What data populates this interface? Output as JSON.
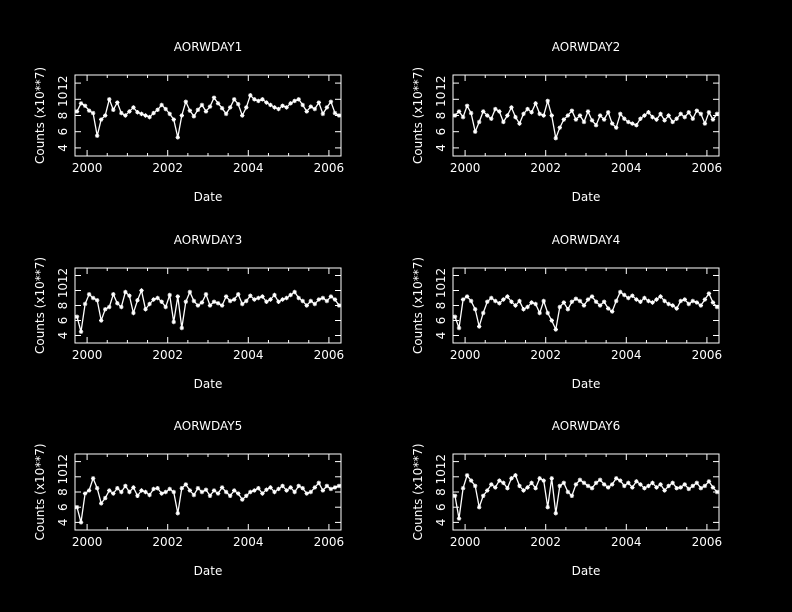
{
  "figure": {
    "background": "#000000",
    "foreground": "#ffffff"
  },
  "chart_data": [
    {
      "type": "line",
      "title": "AORWDAY1",
      "xlabel": "Date",
      "ylabel": "Counts (x10**7)",
      "xlim": [
        1999.7,
        2006.3
      ],
      "ylim": [
        3,
        13
      ],
      "xticks": [
        2000,
        2002,
        2004,
        2006
      ],
      "xtick_labels": [
        "2000",
        "2002",
        "2004",
        "2006"
      ],
      "yticks": [
        4,
        6,
        8,
        10,
        12
      ],
      "ytick_labels": [
        "4",
        "6",
        "8",
        "10",
        "12"
      ],
      "markers": "asterisk",
      "grid": false,
      "series": [
        {
          "x": [
            1999.75,
            1999.85,
            1999.95,
            2000.05,
            2000.15,
            2000.25,
            2000.35,
            2000.45,
            2000.55,
            2000.65,
            2000.75,
            2000.85,
            2000.95,
            2001.05,
            2001.15,
            2001.25,
            2001.35,
            2001.45,
            2001.55,
            2001.65,
            2001.75,
            2001.85,
            2001.95,
            2002.05,
            2002.15,
            2002.25,
            2002.35,
            2002.45,
            2002.55,
            2002.65,
            2002.75,
            2002.85,
            2002.95,
            2003.05,
            2003.15,
            2003.25,
            2003.35,
            2003.45,
            2003.55,
            2003.65,
            2003.75,
            2003.85,
            2003.95,
            2004.05,
            2004.15,
            2004.25,
            2004.35,
            2004.45,
            2004.55,
            2004.65,
            2004.75,
            2004.85,
            2004.95,
            2005.05,
            2005.15,
            2005.25,
            2005.35,
            2005.45,
            2005.55,
            2005.65,
            2005.75,
            2005.85,
            2005.95,
            2006.05,
            2006.15,
            2006.25
          ],
          "values": [
            8.5,
            9.5,
            9.2,
            8.6,
            8.3,
            5.5,
            7.5,
            8.0,
            10.0,
            8.7,
            9.6,
            8.3,
            8.0,
            8.5,
            9.0,
            8.4,
            8.2,
            8.0,
            7.8,
            8.3,
            8.7,
            9.3,
            8.8,
            8.2,
            7.5,
            5.3,
            8.0,
            9.7,
            8.6,
            7.9,
            8.7,
            9.3,
            8.5,
            9.1,
            10.2,
            9.5,
            8.9,
            8.2,
            9.0,
            10.0,
            9.4,
            8.0,
            9.0,
            10.5,
            10.0,
            9.8,
            10.0,
            9.6,
            9.3,
            9.0,
            8.8,
            9.2,
            9.0,
            9.5,
            9.8,
            10.0,
            9.3,
            8.5,
            9.1,
            8.8,
            9.6,
            8.2,
            9.0,
            9.7,
            8.3,
            8.0
          ]
        }
      ]
    },
    {
      "type": "line",
      "title": "AORWDAY2",
      "xlabel": "Date",
      "ylabel": "Counts (x10**7)",
      "xlim": [
        1999.7,
        2006.3
      ],
      "ylim": [
        3,
        13
      ],
      "xticks": [
        2000,
        2002,
        2004,
        2006
      ],
      "xtick_labels": [
        "2000",
        "2002",
        "2004",
        "2006"
      ],
      "yticks": [
        4,
        6,
        8,
        10,
        12
      ],
      "ytick_labels": [
        "4",
        "6",
        "8",
        "10",
        "12"
      ],
      "markers": "asterisk",
      "grid": false,
      "series": [
        {
          "x": [
            1999.75,
            1999.85,
            1999.95,
            2000.05,
            2000.15,
            2000.25,
            2000.35,
            2000.45,
            2000.55,
            2000.65,
            2000.75,
            2000.85,
            2000.95,
            2001.05,
            2001.15,
            2001.25,
            2001.35,
            2001.45,
            2001.55,
            2001.65,
            2001.75,
            2001.85,
            2001.95,
            2002.05,
            2002.15,
            2002.25,
            2002.35,
            2002.45,
            2002.55,
            2002.65,
            2002.75,
            2002.85,
            2002.95,
            2003.05,
            2003.15,
            2003.25,
            2003.35,
            2003.45,
            2003.55,
            2003.65,
            2003.75,
            2003.85,
            2003.95,
            2004.05,
            2004.15,
            2004.25,
            2004.35,
            2004.45,
            2004.55,
            2004.65,
            2004.75,
            2004.85,
            2004.95,
            2005.05,
            2005.15,
            2005.25,
            2005.35,
            2005.45,
            2005.55,
            2005.65,
            2005.75,
            2005.85,
            2005.95,
            2006.05,
            2006.15,
            2006.25
          ],
          "values": [
            8.0,
            8.5,
            7.8,
            9.2,
            8.3,
            6.0,
            7.2,
            8.5,
            8.0,
            7.6,
            8.8,
            8.5,
            7.2,
            8.0,
            9.0,
            7.8,
            7.0,
            8.2,
            8.8,
            8.4,
            9.5,
            8.2,
            8.0,
            9.8,
            8.0,
            5.2,
            6.5,
            7.5,
            8.0,
            8.6,
            7.5,
            8.0,
            7.2,
            8.5,
            7.4,
            6.8,
            8.0,
            7.5,
            8.4,
            7.0,
            6.5,
            8.2,
            7.6,
            7.2,
            7.0,
            6.8,
            7.6,
            8.0,
            8.4,
            7.8,
            7.5,
            8.2,
            7.4,
            8.0,
            7.2,
            7.6,
            8.2,
            7.8,
            8.4,
            7.6,
            8.6,
            8.2,
            7.0,
            8.4,
            7.5,
            8.2
          ]
        }
      ]
    },
    {
      "type": "line",
      "title": "AORWDAY3",
      "xlabel": "Date",
      "ylabel": "Counts (x10**7)",
      "xlim": [
        1999.7,
        2006.3
      ],
      "ylim": [
        3,
        13
      ],
      "xticks": [
        2000,
        2002,
        2004,
        2006
      ],
      "xtick_labels": [
        "2000",
        "2002",
        "2004",
        "2006"
      ],
      "yticks": [
        4,
        6,
        8,
        10,
        12
      ],
      "ytick_labels": [
        "4",
        "6",
        "8",
        "10",
        "12"
      ],
      "markers": "asterisk",
      "grid": false,
      "series": [
        {
          "x": [
            1999.75,
            1999.85,
            1999.95,
            2000.05,
            2000.15,
            2000.25,
            2000.35,
            2000.45,
            2000.55,
            2000.65,
            2000.75,
            2000.85,
            2000.95,
            2001.05,
            2001.15,
            2001.25,
            2001.35,
            2001.45,
            2001.55,
            2001.65,
            2001.75,
            2001.85,
            2001.95,
            2002.05,
            2002.15,
            2002.25,
            2002.35,
            2002.45,
            2002.55,
            2002.65,
            2002.75,
            2002.85,
            2002.95,
            2003.05,
            2003.15,
            2003.25,
            2003.35,
            2003.45,
            2003.55,
            2003.65,
            2003.75,
            2003.85,
            2003.95,
            2004.05,
            2004.15,
            2004.25,
            2004.35,
            2004.45,
            2004.55,
            2004.65,
            2004.75,
            2004.85,
            2004.95,
            2005.05,
            2005.15,
            2005.25,
            2005.35,
            2005.45,
            2005.55,
            2005.65,
            2005.75,
            2005.85,
            2005.95,
            2006.05,
            2006.15,
            2006.25
          ],
          "values": [
            6.5,
            4.5,
            8.2,
            9.5,
            9.0,
            8.7,
            6.0,
            7.5,
            7.8,
            9.5,
            8.3,
            7.8,
            9.8,
            9.3,
            7.0,
            8.7,
            10.0,
            7.5,
            8.2,
            8.8,
            9.0,
            8.5,
            7.8,
            9.4,
            5.8,
            9.2,
            5.0,
            8.5,
            9.8,
            8.6,
            8.0,
            8.4,
            9.5,
            8.0,
            8.5,
            8.3,
            8.0,
            9.2,
            8.6,
            8.8,
            9.5,
            8.2,
            8.6,
            9.3,
            8.8,
            9.0,
            9.2,
            8.5,
            8.8,
            9.4,
            8.5,
            8.8,
            9.0,
            9.4,
            9.8,
            9.0,
            8.6,
            8.0,
            8.6,
            8.2,
            8.8,
            9.0,
            8.6,
            9.2,
            8.8,
            8.0
          ]
        }
      ]
    },
    {
      "type": "line",
      "title": "AORWDAY4",
      "xlabel": "Date",
      "ylabel": "Counts (x10**7)",
      "xlim": [
        1999.7,
        2006.3
      ],
      "ylim": [
        3,
        13
      ],
      "xticks": [
        2000,
        2002,
        2004,
        2006
      ],
      "xtick_labels": [
        "2000",
        "2002",
        "2004",
        "2006"
      ],
      "yticks": [
        4,
        6,
        8,
        10,
        12
      ],
      "ytick_labels": [
        "4",
        "6",
        "8",
        "10",
        "12"
      ],
      "markers": "asterisk",
      "grid": false,
      "series": [
        {
          "x": [
            1999.75,
            1999.85,
            1999.95,
            2000.05,
            2000.15,
            2000.25,
            2000.35,
            2000.45,
            2000.55,
            2000.65,
            2000.75,
            2000.85,
            2000.95,
            2001.05,
            2001.15,
            2001.25,
            2001.35,
            2001.45,
            2001.55,
            2001.65,
            2001.75,
            2001.85,
            2001.95,
            2002.05,
            2002.15,
            2002.25,
            2002.35,
            2002.45,
            2002.55,
            2002.65,
            2002.75,
            2002.85,
            2002.95,
            2003.05,
            2003.15,
            2003.25,
            2003.35,
            2003.45,
            2003.55,
            2003.65,
            2003.75,
            2003.85,
            2003.95,
            2004.05,
            2004.15,
            2004.25,
            2004.35,
            2004.45,
            2004.55,
            2004.65,
            2004.75,
            2004.85,
            2004.95,
            2005.05,
            2005.15,
            2005.25,
            2005.35,
            2005.45,
            2005.55,
            2005.65,
            2005.75,
            2005.85,
            2005.95,
            2006.05,
            2006.15,
            2006.25
          ],
          "values": [
            6.5,
            5.0,
            8.8,
            9.2,
            8.6,
            7.5,
            5.2,
            7.0,
            8.5,
            9.0,
            8.6,
            8.3,
            8.8,
            9.2,
            8.5,
            8.0,
            8.6,
            7.5,
            7.8,
            8.4,
            8.2,
            7.0,
            8.6,
            7.0,
            6.0,
            4.8,
            7.8,
            8.4,
            7.5,
            8.5,
            8.9,
            8.6,
            8.0,
            8.8,
            9.2,
            8.5,
            8.0,
            8.5,
            7.6,
            7.2,
            8.6,
            9.8,
            9.4,
            9.0,
            9.3,
            8.8,
            8.5,
            9.0,
            8.6,
            8.4,
            8.8,
            9.2,
            8.6,
            8.2,
            8.0,
            7.6,
            8.6,
            8.8,
            8.2,
            8.6,
            8.4,
            8.0,
            8.8,
            9.6,
            8.4,
            7.8
          ]
        }
      ]
    },
    {
      "type": "line",
      "title": "AORWDAY5",
      "xlabel": "Date",
      "ylabel": "Counts (x10**7)",
      "xlim": [
        1999.7,
        2006.3
      ],
      "ylim": [
        3,
        13
      ],
      "xticks": [
        2000,
        2002,
        2004,
        2006
      ],
      "xtick_labels": [
        "2000",
        "2002",
        "2004",
        "2006"
      ],
      "yticks": [
        4,
        6,
        8,
        10,
        12
      ],
      "ytick_labels": [
        "4",
        "6",
        "8",
        "10",
        "12"
      ],
      "markers": "asterisk",
      "grid": false,
      "series": [
        {
          "x": [
            1999.75,
            1999.85,
            1999.95,
            2000.05,
            2000.15,
            2000.25,
            2000.35,
            2000.45,
            2000.55,
            2000.65,
            2000.75,
            2000.85,
            2000.95,
            2001.05,
            2001.15,
            2001.25,
            2001.35,
            2001.45,
            2001.55,
            2001.65,
            2001.75,
            2001.85,
            2001.95,
            2002.05,
            2002.15,
            2002.25,
            2002.35,
            2002.45,
            2002.55,
            2002.65,
            2002.75,
            2002.85,
            2002.95,
            2003.05,
            2003.15,
            2003.25,
            2003.35,
            2003.45,
            2003.55,
            2003.65,
            2003.75,
            2003.85,
            2003.95,
            2004.05,
            2004.15,
            2004.25,
            2004.35,
            2004.45,
            2004.55,
            2004.65,
            2004.75,
            2004.85,
            2004.95,
            2005.05,
            2005.15,
            2005.25,
            2005.35,
            2005.45,
            2005.55,
            2005.65,
            2005.75,
            2005.85,
            2005.95,
            2006.05,
            2006.15,
            2006.25
          ],
          "values": [
            6.0,
            4.0,
            7.8,
            8.2,
            9.8,
            8.5,
            6.5,
            7.2,
            8.2,
            7.8,
            8.5,
            8.0,
            8.8,
            8.0,
            8.6,
            7.5,
            8.2,
            8.0,
            7.6,
            8.4,
            8.5,
            7.8,
            8.0,
            8.4,
            8.0,
            5.2,
            8.5,
            9.0,
            8.2,
            7.6,
            8.5,
            8.0,
            8.3,
            7.5,
            8.2,
            7.8,
            8.6,
            8.0,
            7.5,
            8.2,
            7.8,
            7.0,
            7.5,
            8.0,
            8.2,
            8.5,
            7.8,
            8.3,
            8.6,
            8.0,
            8.4,
            8.8,
            8.2,
            8.6,
            8.0,
            8.8,
            8.5,
            7.8,
            8.0,
            8.6,
            9.2,
            8.2,
            8.8,
            8.4,
            8.6,
            8.8
          ]
        }
      ]
    },
    {
      "type": "line",
      "title": "AORWDAY6",
      "xlabel": "Date",
      "ylabel": "Counts (x10**7)",
      "xlim": [
        1999.7,
        2006.3
      ],
      "ylim": [
        3,
        13
      ],
      "xticks": [
        2000,
        2002,
        2004,
        2006
      ],
      "xtick_labels": [
        "2000",
        "2002",
        "2004",
        "2006"
      ],
      "yticks": [
        4,
        6,
        8,
        10,
        12
      ],
      "ytick_labels": [
        "4",
        "6",
        "8",
        "10",
        "12"
      ],
      "markers": "asterisk",
      "grid": false,
      "series": [
        {
          "x": [
            1999.75,
            1999.85,
            1999.95,
            2000.05,
            2000.15,
            2000.25,
            2000.35,
            2000.45,
            2000.55,
            2000.65,
            2000.75,
            2000.85,
            2000.95,
            2001.05,
            2001.15,
            2001.25,
            2001.35,
            2001.45,
            2001.55,
            2001.65,
            2001.75,
            2001.85,
            2001.95,
            2002.05,
            2002.15,
            2002.25,
            2002.35,
            2002.45,
            2002.55,
            2002.65,
            2002.75,
            2002.85,
            2002.95,
            2003.05,
            2003.15,
            2003.25,
            2003.35,
            2003.45,
            2003.55,
            2003.65,
            2003.75,
            2003.85,
            2003.95,
            2004.05,
            2004.15,
            2004.25,
            2004.35,
            2004.45,
            2004.55,
            2004.65,
            2004.75,
            2004.85,
            2004.95,
            2005.05,
            2005.15,
            2005.25,
            2005.35,
            2005.45,
            2005.55,
            2005.65,
            2005.75,
            2005.85,
            2005.95,
            2006.05,
            2006.15,
            2006.25
          ],
          "values": [
            7.5,
            4.5,
            8.5,
            10.2,
            9.5,
            8.8,
            6.0,
            7.5,
            8.2,
            9.0,
            8.6,
            9.5,
            9.2,
            8.5,
            9.8,
            10.2,
            8.8,
            8.2,
            8.6,
            9.2,
            8.5,
            9.8,
            9.5,
            6.0,
            9.8,
            5.2,
            8.8,
            9.2,
            8.0,
            7.5,
            9.0,
            9.6,
            9.2,
            8.8,
            8.5,
            9.2,
            9.6,
            9.0,
            8.6,
            9.0,
            9.8,
            9.5,
            8.8,
            9.2,
            8.6,
            9.4,
            9.0,
            8.5,
            8.8,
            9.2,
            8.6,
            9.0,
            8.2,
            8.8,
            9.2,
            8.5,
            8.6,
            9.0,
            8.4,
            8.8,
            9.2,
            8.5,
            8.8,
            9.4,
            8.6,
            8.0
          ]
        }
      ]
    }
  ]
}
